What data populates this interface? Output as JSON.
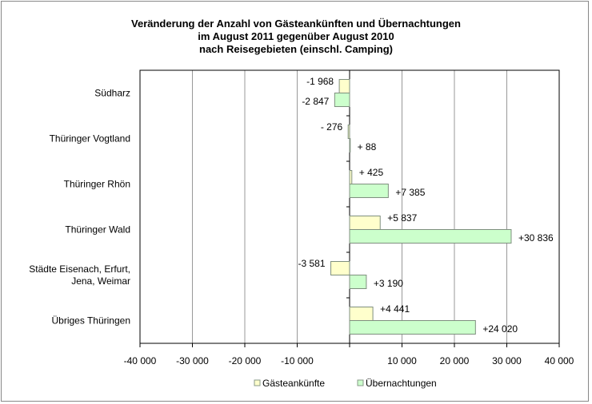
{
  "chart_data": {
    "type": "bar",
    "orientation": "horizontal",
    "title_lines": [
      "Veränderung der Anzahl von Gästeankünften und Übernachtungen",
      "im August 2011 gegenüber August 2010",
      "nach Reisegebieten (einschl. Camping)"
    ],
    "categories": [
      [
        "Südharz"
      ],
      [
        "Thüringer Vogtland"
      ],
      [
        "Thüringer Rhön"
      ],
      [
        "Thüringer Wald"
      ],
      [
        "Städte Eisenach, Erfurt,",
        "Jena, Weimar"
      ],
      [
        "Übriges Thüringen"
      ]
    ],
    "series": [
      {
        "name": "Gästeankünfte",
        "color": "#ffffcc",
        "values": [
          -1968,
          -276,
          425,
          5837,
          -3581,
          4441
        ],
        "labels": [
          "-1 968",
          "- 276",
          "+ 425",
          "+5 837",
          "-3 581",
          "+4 441"
        ]
      },
      {
        "name": "Übernachtungen",
        "color": "#ccffcc",
        "values": [
          -2847,
          88,
          7385,
          30836,
          3190,
          24020
        ],
        "labels": [
          "-2 847",
          "+ 88",
          "+7 385",
          "+30 836",
          "+3 190",
          "+24 020"
        ]
      }
    ],
    "xlim": [
      -40000,
      40000
    ],
    "xticks": [
      -40000,
      -30000,
      -20000,
      -10000,
      0,
      10000,
      20000,
      30000,
      40000
    ],
    "xtick_labels": [
      "-40 000",
      "-30 000",
      "-20 000",
      "-10 000",
      "",
      "10 000",
      "20 000",
      "30 000",
      "40 000"
    ],
    "grid": "vertical",
    "legend": "bottom"
  }
}
